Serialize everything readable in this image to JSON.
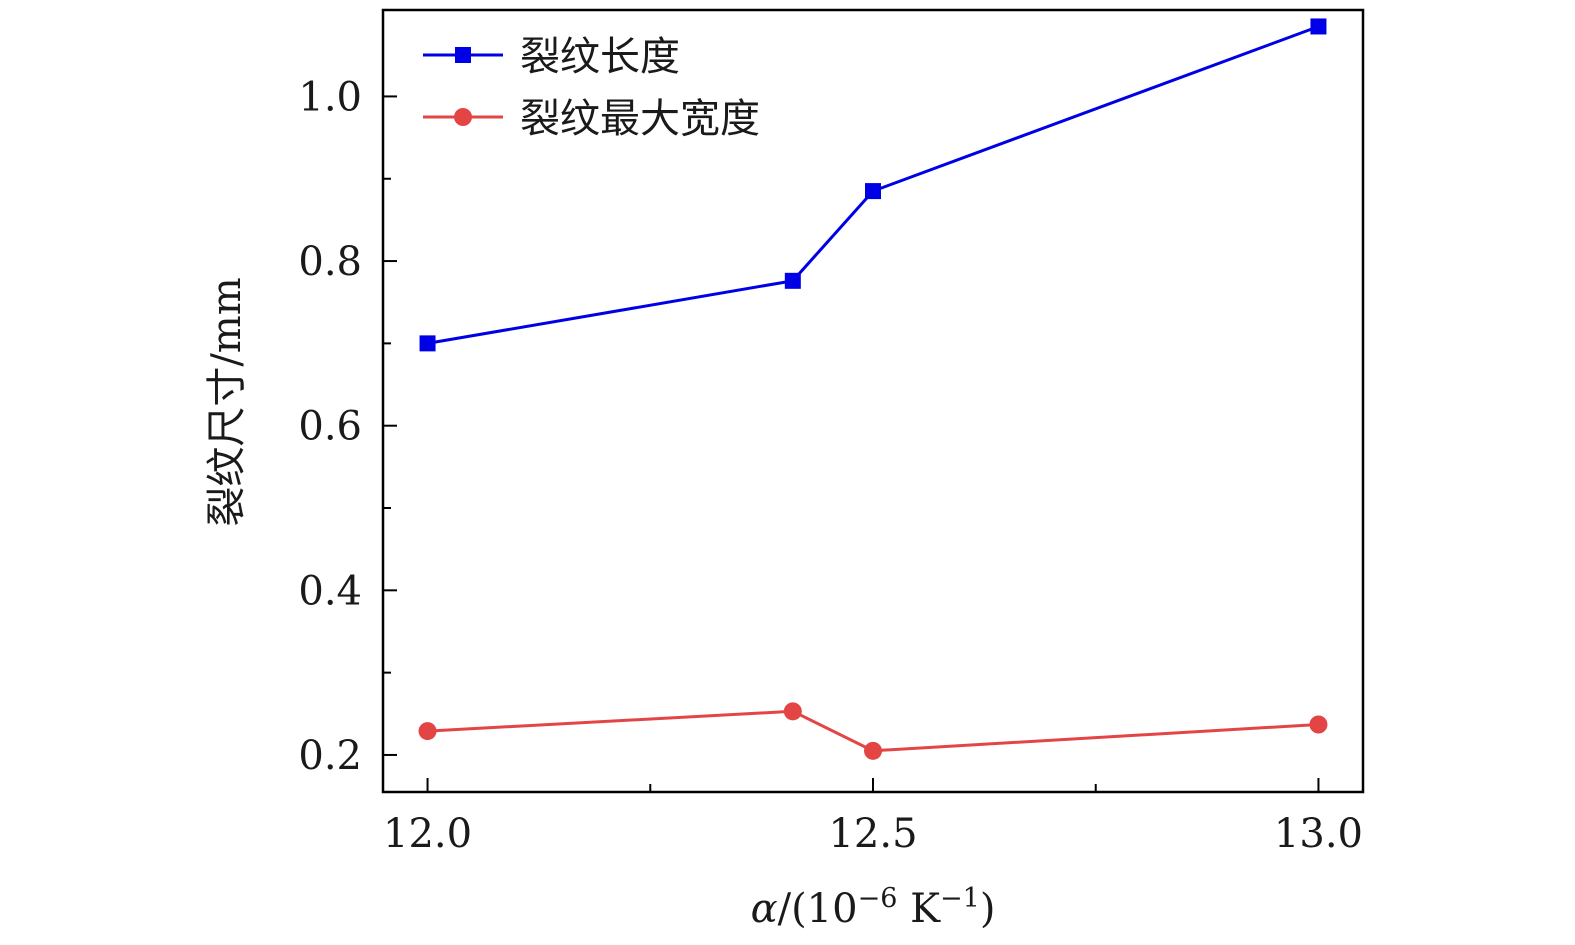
{
  "chart_data": {
    "type": "line",
    "xlabel": {
      "symbol": "α",
      "text": "/(10",
      "exp1": "−6",
      "unit": " K",
      "exp2": "−1",
      "close": ")"
    },
    "ylabel": "裂纹尺寸/mm",
    "xlim": [
      11.95,
      13.05
    ],
    "ylim": [
      0.155,
      1.105
    ],
    "x_ticks": [
      12.0,
      12.5,
      13.0
    ],
    "x_tick_labels": [
      "12.0",
      "12.5",
      "13.0"
    ],
    "x_minor_ticks": [
      12.25,
      12.75
    ],
    "y_ticks": [
      0.2,
      0.4,
      0.6,
      0.8,
      1.0
    ],
    "y_tick_labels": [
      "0.2",
      "0.4",
      "0.6",
      "0.8",
      "1.0"
    ],
    "y_minor_ticks": [
      0.3,
      0.5,
      0.7,
      0.9
    ],
    "grid": false,
    "legend_position": "top-left",
    "series": [
      {
        "name": "裂纹长度",
        "color": "#0000e6",
        "marker": "square",
        "x": [
          12.0,
          12.41,
          12.5,
          13.0
        ],
        "y": [
          0.7,
          0.776,
          0.885,
          1.085
        ]
      },
      {
        "name": "裂纹最大宽度",
        "color": "#e34545",
        "marker": "circle",
        "x": [
          12.0,
          12.41,
          12.5,
          13.0
        ],
        "y": [
          0.229,
          0.253,
          0.205,
          0.237
        ]
      }
    ]
  }
}
